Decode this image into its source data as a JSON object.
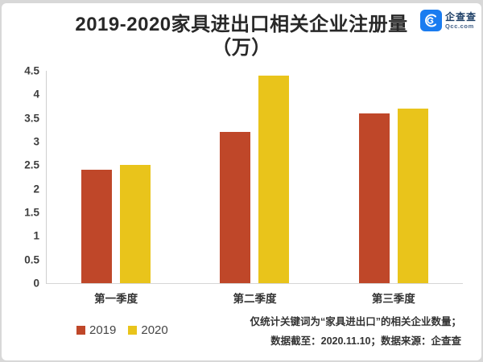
{
  "header": {
    "title_line1": "2019-2020家具进出口相关企业注册量",
    "title_line2": "（万）",
    "logo": {
      "name": "企查查",
      "domain": "Qcc.com",
      "icon": "qcc-spiral-icon",
      "icon_color": "#1a7cf0"
    }
  },
  "chart_data": {
    "type": "bar",
    "title": "2019-2020家具进出口相关企业注册量（万）",
    "categories": [
      "第一季度",
      "第二季度",
      "第三季度"
    ],
    "series": [
      {
        "name": "2019",
        "color": "#bf4729",
        "values": [
          2.4,
          3.2,
          3.6
        ]
      },
      {
        "name": "2020",
        "color": "#e9c41b",
        "values": [
          2.5,
          4.4,
          3.7
        ]
      }
    ],
    "ylim": [
      0,
      4.5
    ],
    "yticks": [
      4.5,
      4,
      3.5,
      3,
      2.5,
      2,
      1.5,
      1,
      0.5,
      0
    ],
    "grid": false,
    "legend_position": "bottom-left"
  },
  "footnote": {
    "line1": "仅统计关键词为“家具进出口”的相关企业数量；",
    "line2": "数据截至：2020.11.10；数据来源：企查查"
  }
}
